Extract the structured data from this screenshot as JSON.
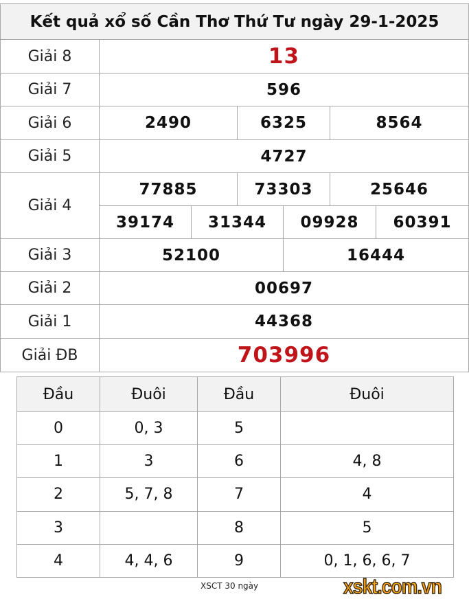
{
  "title": "Kết quả xổ số Cần Thơ Thứ Tư ngày 29-1-2025",
  "prizes": {
    "g8": {
      "label": "Giải 8",
      "values": [
        "13"
      ]
    },
    "g7": {
      "label": "Giải 7",
      "values": [
        "596"
      ]
    },
    "g6": {
      "label": "Giải 6",
      "values": [
        "2490",
        "6325",
        "8564"
      ]
    },
    "g5": {
      "label": "Giải 5",
      "values": [
        "4727"
      ]
    },
    "g4": {
      "label": "Giải 4",
      "values": [
        "77885",
        "73303",
        "25646",
        "39174",
        "31344",
        "09928",
        "60391"
      ]
    },
    "g3": {
      "label": "Giải 3",
      "values": [
        "52100",
        "16444"
      ]
    },
    "g2": {
      "label": "Giải 2",
      "values": [
        "00697"
      ]
    },
    "g1": {
      "label": "Giải 1",
      "values": [
        "44368"
      ]
    },
    "gdb": {
      "label": "Giải ĐB",
      "values": [
        "703996"
      ]
    }
  },
  "loto": {
    "headers": [
      "Đầu",
      "Đuôi",
      "Đầu",
      "Đuôi"
    ],
    "rows": [
      [
        "0",
        "0, 3",
        "5",
        ""
      ],
      [
        "1",
        "3",
        "6",
        "4, 8"
      ],
      [
        "2",
        "5, 7, 8",
        "7",
        "4"
      ],
      [
        "3",
        "",
        "8",
        "5"
      ],
      [
        "4",
        "4, 4, 6",
        "9",
        "0, 1, 6, 6, 7"
      ]
    ]
  },
  "footer": {
    "link": "XSCT 30 ngày",
    "logo": "xskt.com.vn"
  },
  "colors": {
    "accent_red": "#c0141b",
    "header_bg": "#f2f2f2",
    "logo_orange": "#f7a21b"
  }
}
